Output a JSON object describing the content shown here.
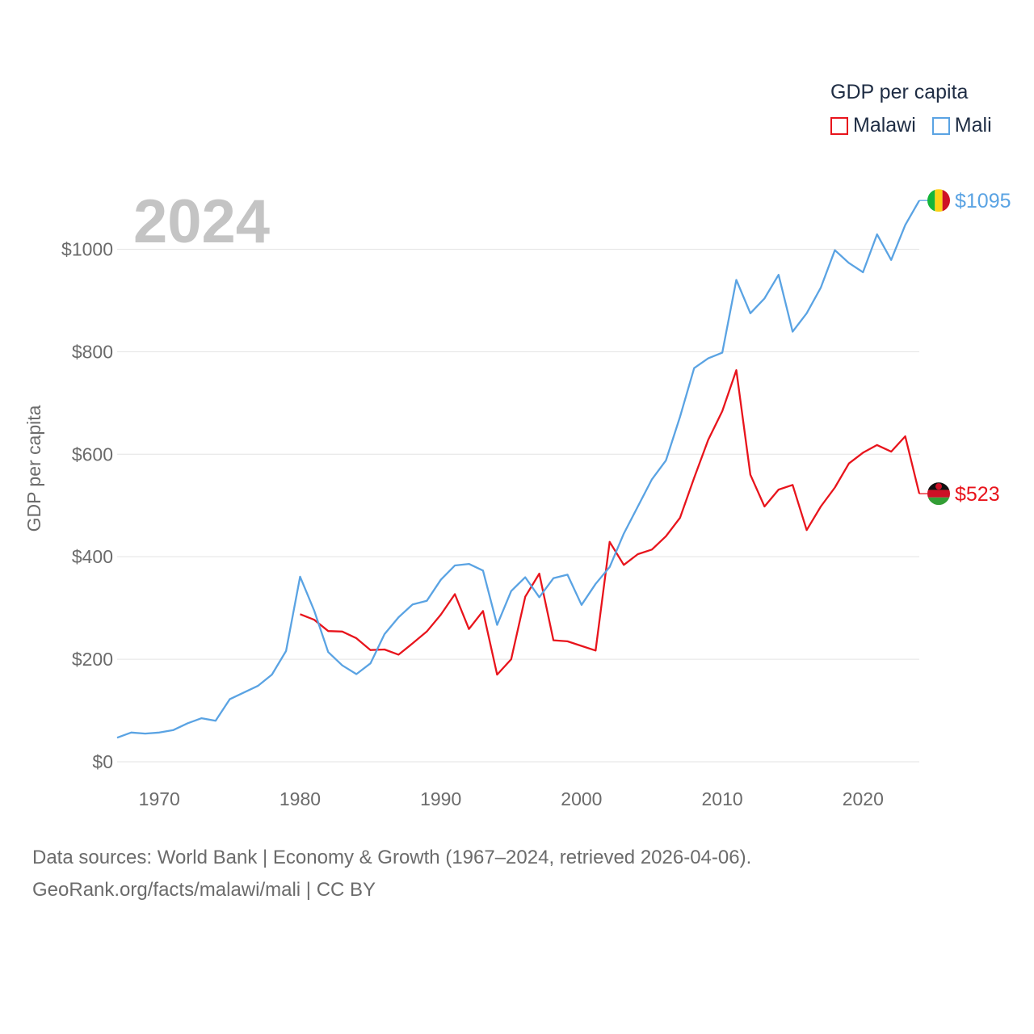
{
  "chart_data": {
    "type": "line",
    "current_year_label": "2024",
    "ylabel": "GDP per capita",
    "xlabel": "",
    "ylim": [
      0,
      1100
    ],
    "xlim": [
      1967,
      2024
    ],
    "y_ticks": [
      0,
      200,
      400,
      600,
      800,
      1000
    ],
    "y_tick_labels": [
      "$0",
      "$200",
      "$400",
      "$600",
      "$800",
      "$1000"
    ],
    "x_ticks": [
      1970,
      1980,
      1990,
      2000,
      2010,
      2020
    ],
    "x_tick_labels": [
      "1970",
      "1980",
      "1990",
      "2000",
      "2010",
      "2020"
    ],
    "legend_title": "GDP per capita",
    "legend_position": "top-right",
    "series": [
      {
        "name": "Malawi",
        "color": "#e8141c",
        "end_label": "$523",
        "flag": "malawi",
        "x": [
          1980,
          1981,
          1982,
          1983,
          1984,
          1985,
          1986,
          1987,
          1988,
          1989,
          1990,
          1991,
          1992,
          1993,
          1994,
          1995,
          1996,
          1997,
          1998,
          1999,
          2000,
          2001,
          2002,
          2003,
          2004,
          2005,
          2006,
          2007,
          2008,
          2009,
          2010,
          2011,
          2012,
          2013,
          2014,
          2015,
          2016,
          2017,
          2018,
          2019,
          2020,
          2021,
          2022,
          2023,
          2024
        ],
        "values": [
          288,
          277,
          255,
          254,
          241,
          218,
          219,
          209,
          231,
          254,
          287,
          327,
          259,
          294,
          170,
          200,
          322,
          367,
          237,
          235,
          226,
          217,
          429,
          384,
          405,
          414,
          440,
          476,
          554,
          628,
          684,
          764,
          560,
          498,
          531,
          540,
          452,
          498,
          535,
          582,
          603,
          618,
          605,
          635,
          523
        ]
      },
      {
        "name": "Mali",
        "color": "#5aa3e3",
        "end_label": "$1095",
        "flag": "mali",
        "x": [
          1967,
          1968,
          1969,
          1970,
          1971,
          1972,
          1973,
          1974,
          1975,
          1976,
          1977,
          1978,
          1979,
          1980,
          1981,
          1982,
          1983,
          1984,
          1985,
          1986,
          1987,
          1988,
          1989,
          1990,
          1991,
          1992,
          1993,
          1994,
          1995,
          1996,
          1997,
          1998,
          1999,
          2000,
          2001,
          2002,
          2003,
          2004,
          2005,
          2006,
          2007,
          2008,
          2009,
          2010,
          2011,
          2012,
          2013,
          2014,
          2015,
          2016,
          2017,
          2018,
          2019,
          2020,
          2021,
          2022,
          2023,
          2024
        ],
        "values": [
          47,
          57,
          55,
          57,
          62,
          75,
          85,
          80,
          122,
          135,
          148,
          170,
          216,
          361,
          295,
          214,
          188,
          171,
          192,
          249,
          282,
          307,
          314,
          355,
          383,
          386,
          373,
          267,
          333,
          360,
          321,
          358,
          365,
          306,
          347,
          380,
          445,
          498,
          551,
          588,
          673,
          768,
          787,
          798,
          940,
          875,
          904,
          950,
          839,
          875,
          925,
          998,
          973,
          955,
          1029,
          979,
          1047,
          1095
        ]
      }
    ]
  },
  "source": {
    "line1": "Data sources: World Bank | Economy & Growth (1967–2024, retrieved 2026-04-06).",
    "line2": "GeoRank.org/facts/malawi/mali | CC BY"
  }
}
